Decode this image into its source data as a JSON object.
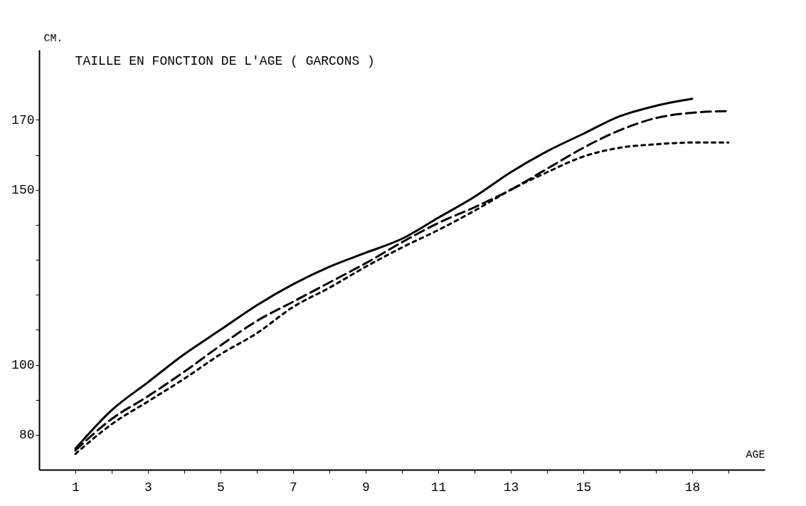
{
  "chart_data": {
    "type": "line",
    "title": "TAILLE EN FONCTION DE L'AGE ( GARCONS )",
    "xlabel": "AGE",
    "ylabel": "CM.",
    "xlim": [
      0,
      20
    ],
    "ylim": [
      70,
      190
    ],
    "xticks": [
      1,
      {
        "value": 2,
        "label": null
      },
      3,
      {
        "value": 4,
        "label": null
      },
      5,
      {
        "value": 6,
        "label": null
      },
      7,
      {
        "value": 8,
        "label": null
      },
      9,
      {
        "value": 10,
        "label": null
      },
      11,
      {
        "value": 12,
        "label": null
      },
      13,
      {
        "value": 14,
        "label": null
      },
      15,
      {
        "value": 16,
        "label": null
      },
      {
        "value": 17,
        "label": null
      },
      18,
      {
        "value": 19,
        "label": null
      }
    ],
    "yticks": [
      80,
      {
        "value": 90,
        "label": null
      },
      100,
      {
        "value": 110,
        "label": null
      },
      {
        "value": 120,
        "label": null
      },
      {
        "value": 130,
        "label": null
      },
      {
        "value": 140,
        "label": null
      },
      150,
      {
        "value": 160,
        "label": null
      },
      170
    ],
    "grid": false,
    "marker": "none",
    "series": [
      {
        "color": "#000000",
        "line_style": "solid",
        "x": [
          1,
          2,
          3,
          4,
          5,
          6,
          7,
          8,
          9,
          10,
          11,
          12,
          13,
          14,
          15,
          16,
          17,
          18
        ],
        "values": [
          76,
          87,
          95,
          103,
          110,
          117,
          123,
          128,
          132,
          136,
          142,
          148,
          155,
          161,
          166,
          171,
          174,
          176
        ]
      },
      {
        "color": "#000000",
        "line_style": "dashed",
        "x": [
          1,
          2,
          3,
          4,
          5,
          6,
          7,
          8,
          9,
          10,
          11,
          12,
          13,
          14,
          15,
          16,
          17,
          18,
          19
        ],
        "values": [
          75.5,
          84.5,
          91,
          98,
          105.5,
          112.5,
          118,
          123.5,
          129,
          135,
          140.5,
          145,
          150,
          156,
          162,
          167,
          170.5,
          172,
          172.5
        ]
      },
      {
        "color": "#000000",
        "line_style": "dotted",
        "x": [
          1,
          2,
          3,
          4,
          5,
          6,
          7,
          8,
          9,
          10,
          11,
          12,
          13,
          14,
          15,
          16,
          17,
          18,
          19
        ],
        "values": [
          74.5,
          83,
          89.5,
          96,
          103,
          109,
          116.5,
          122,
          128,
          133.5,
          138.5,
          144,
          150,
          155,
          159.5,
          162,
          163,
          163.5,
          163.5
        ]
      }
    ]
  }
}
